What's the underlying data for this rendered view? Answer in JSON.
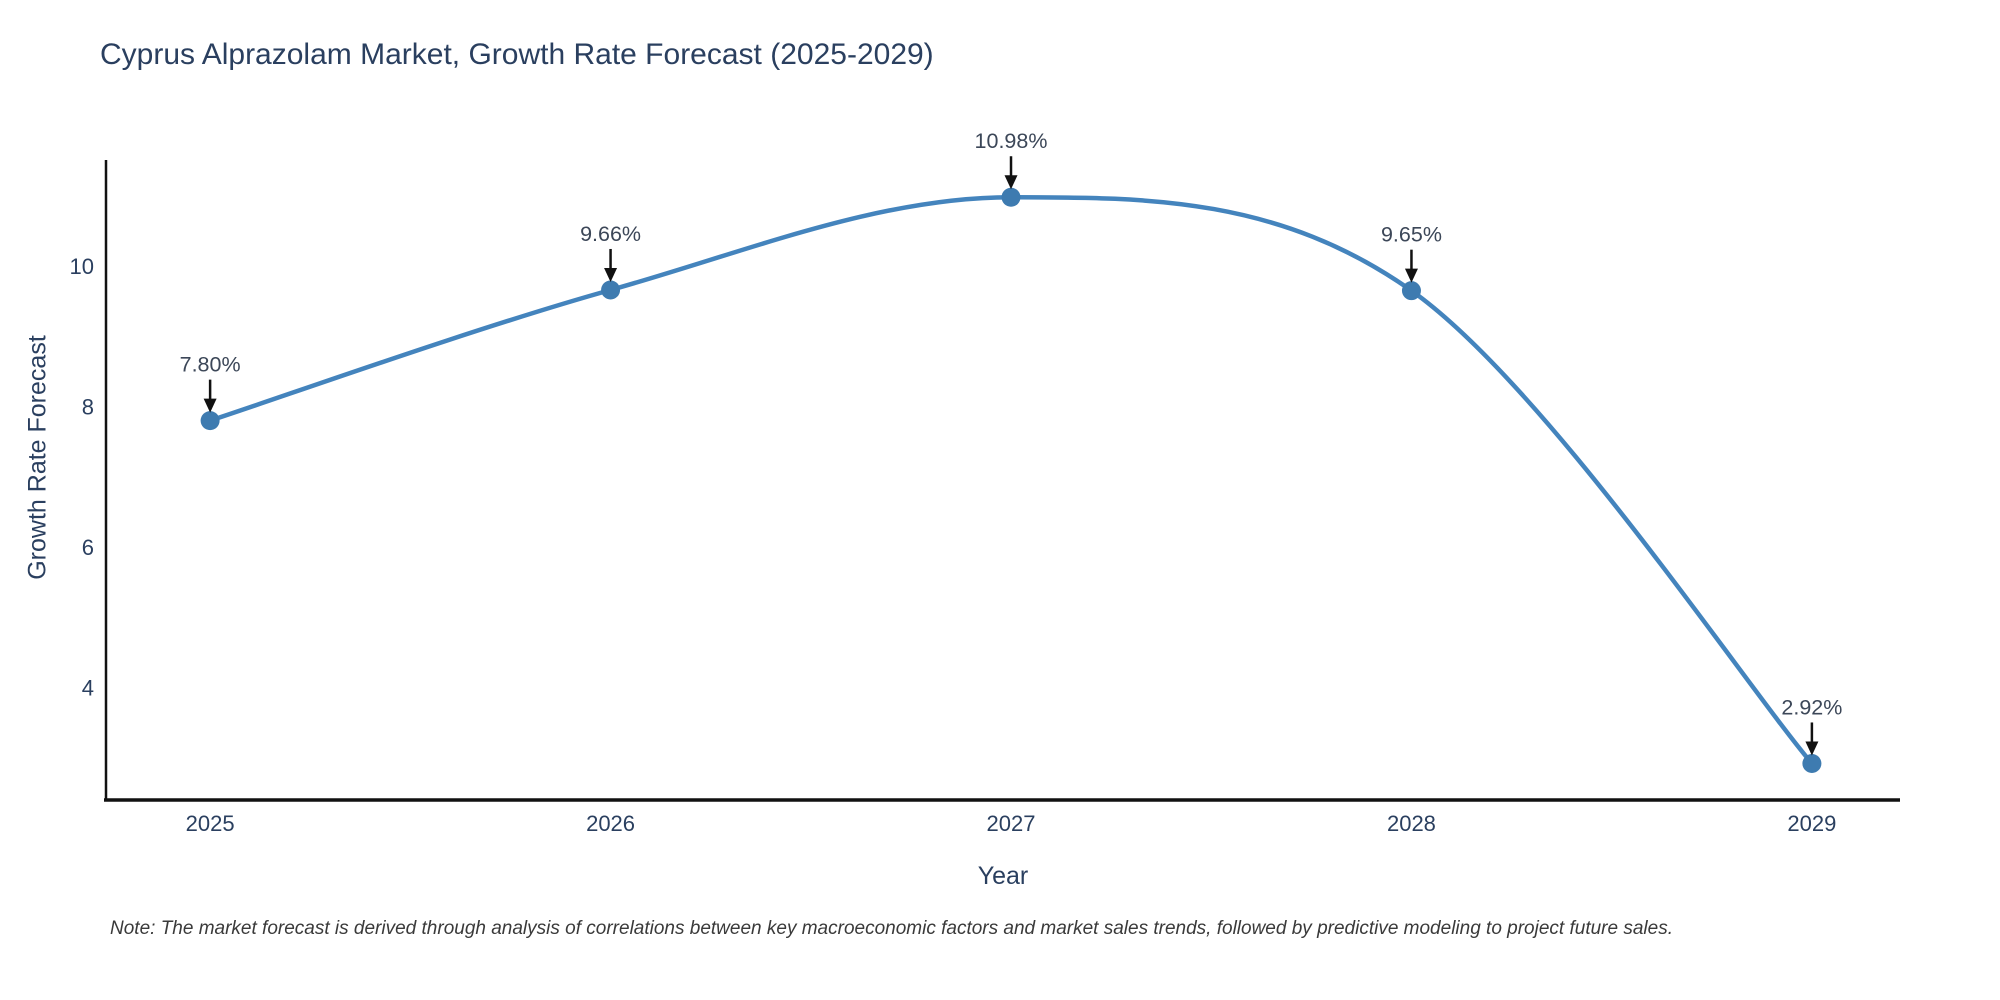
{
  "note": "Note: The market forecast is derived through analysis of correlations between key macroeconomic factors and market sales trends, followed by predictive modeling to project future sales.",
  "chart_data": {
    "type": "line",
    "title": "Cyprus Alprazolam Market, Growth Rate Forecast (2025-2029)",
    "xlabel": "Year",
    "ylabel": "Growth Rate Forecast",
    "x": [
      2025,
      2026,
      2027,
      2028,
      2029
    ],
    "y": [
      7.8,
      9.66,
      10.98,
      9.65,
      2.92
    ],
    "point_labels": [
      "7.80%",
      "9.66%",
      "10.98%",
      "9.65%",
      "2.92%"
    ],
    "x_tick_labels": [
      "2025",
      "2026",
      "2027",
      "2028",
      "2029"
    ],
    "x_tick_values": [
      2025,
      2026,
      2027,
      2028,
      2029
    ],
    "y_tick_values": [
      4,
      6,
      8,
      10
    ],
    "xlim": [
      2024.74,
      2029.22
    ],
    "ylim": [
      2.4,
      11.51
    ],
    "line_shape": "spline",
    "grid": false,
    "legend_position": "none",
    "colors": {
      "line": "#4484bd",
      "marker": "#3e7bb0",
      "axis": "#111111",
      "tick_text": "#2a3f5f",
      "annotation_text": "#3c4758",
      "arrow": "#111111"
    }
  }
}
